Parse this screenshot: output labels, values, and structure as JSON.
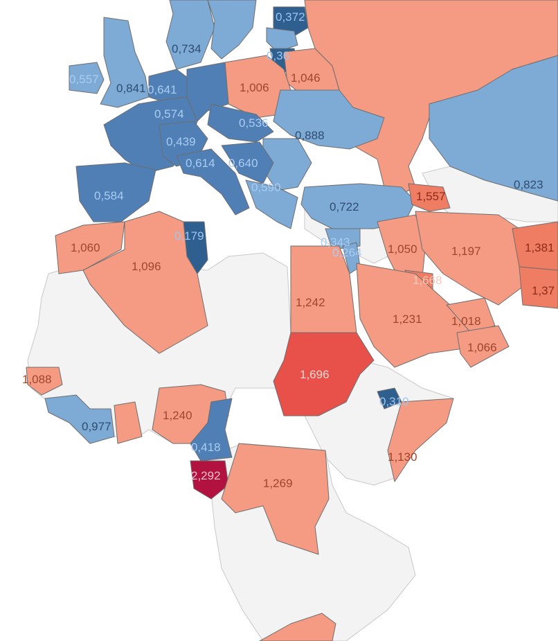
{
  "map": {
    "legend": null,
    "colors": {
      "no_data": "#f3f3f3",
      "dark_blue": "#2f5f8f",
      "mid_blue": "#4f7fb5",
      "light_blue": "#7eaad6",
      "salmon": "#f59b83",
      "orange_red": "#ef7d63",
      "red": "#e8504a",
      "crimson": "#b2123f"
    },
    "regions": [
      {
        "label": "0,372",
        "color": "#2f5f8f",
        "text_color": "#9ec5f0"
      },
      {
        "label": "0,734",
        "color": "#7eaad6",
        "text_color": "#2e4d70"
      },
      {
        "label": "0,36",
        "color": "#2f5f8f",
        "text_color": "#9ec5f0"
      },
      {
        "label": "1,046",
        "color": "#f59b83",
        "text_color": "#a0452c"
      },
      {
        "label": "0,557",
        "color": "#7eaad6",
        "text_color": "#a9cdf4"
      },
      {
        "label": "0,841",
        "color": "#7eaad6",
        "text_color": "#2e4d70"
      },
      {
        "label": "0,641",
        "color": "#4f7fb5",
        "text_color": "#a9cdf4"
      },
      {
        "label": "1,006",
        "color": "#f59b83",
        "text_color": "#a0452c"
      },
      {
        "label": "0,574",
        "color": "#4f7fb5",
        "text_color": "#a9cdf4"
      },
      {
        "label": "0,536",
        "color": "#4f7fb5",
        "text_color": "#a9cdf4"
      },
      {
        "label": "0,888",
        "color": "#7eaad6",
        "text_color": "#2e4d70"
      },
      {
        "label": "0,439",
        "color": "#4f7fb5",
        "text_color": "#a9cdf4"
      },
      {
        "label": "0,614",
        "color": "#4f7fb5",
        "text_color": "#a9cdf4"
      },
      {
        "label": "0,640",
        "color": "#4f7fb5",
        "text_color": "#a9cdf4"
      },
      {
        "label": "0,584",
        "color": "#4f7fb5",
        "text_color": "#a9cdf4"
      },
      {
        "label": "0,590",
        "color": "#7eaad6",
        "text_color": "#a9cdf4"
      },
      {
        "label": "0,722",
        "color": "#7eaad6",
        "text_color": "#2e4d70"
      },
      {
        "label": "1,557",
        "color": "#ef7d63",
        "text_color": "#8f2a18"
      },
      {
        "label": "0,823",
        "color": "#7eaad6",
        "text_color": "#2e4d70"
      },
      {
        "label": "0,179",
        "color": "#2f5f8f",
        "text_color": "#9ec5f0"
      },
      {
        "label": "0,343",
        "color": "#7eaad6",
        "text_color": "#a9cdf4"
      },
      {
        "label": "1,050",
        "color": "#f59b83",
        "text_color": "#a0452c"
      },
      {
        "label": "1,197",
        "color": "#f59b83",
        "text_color": "#a0452c"
      },
      {
        "label": "1,381",
        "color": "#ef7d63",
        "text_color": "#8f2a18"
      },
      {
        "label": "1,060",
        "color": "#f59b83",
        "text_color": "#a0452c"
      },
      {
        "label": "1,096",
        "color": "#f59b83",
        "text_color": "#a0452c"
      },
      {
        "label": "0,264",
        "color": "#7eaad6",
        "text_color": "#a9cdf4"
      },
      {
        "label": "1,668",
        "color": "#ef7d63",
        "text_color": "#f7c7bb"
      },
      {
        "label": "1,37",
        "color": "#ef7d63",
        "text_color": "#8f2a18"
      },
      {
        "label": "1,242",
        "color": "#f59b83",
        "text_color": "#a0452c"
      },
      {
        "label": "1,231",
        "color": "#f59b83",
        "text_color": "#a0452c"
      },
      {
        "label": "1,018",
        "color": "#f59b83",
        "text_color": "#a0452c"
      },
      {
        "label": "1,066",
        "color": "#f59b83",
        "text_color": "#a0452c"
      },
      {
        "label": "1,696",
        "color": "#e8504a",
        "text_color": "#f9d9d3"
      },
      {
        "label": "1,088",
        "color": "#f59b83",
        "text_color": "#a0452c"
      },
      {
        "label": "0,310",
        "color": "#2f5f8f",
        "text_color": "#9ec5f0"
      },
      {
        "label": "1,240",
        "color": "#f59b83",
        "text_color": "#a0452c"
      },
      {
        "label": "0,977",
        "color": "#7eaad6",
        "text_color": "#2e4d70"
      },
      {
        "label": "0,418",
        "color": "#4f7fb5",
        "text_color": "#a9cdf4"
      },
      {
        "label": "1,130",
        "color": "#f59b83",
        "text_color": "#a0452c"
      },
      {
        "label": "2,292",
        "color": "#b2123f",
        "text_color": "#f5c1cf"
      },
      {
        "label": "1,269",
        "color": "#f59b83",
        "text_color": "#a0452c"
      }
    ]
  }
}
